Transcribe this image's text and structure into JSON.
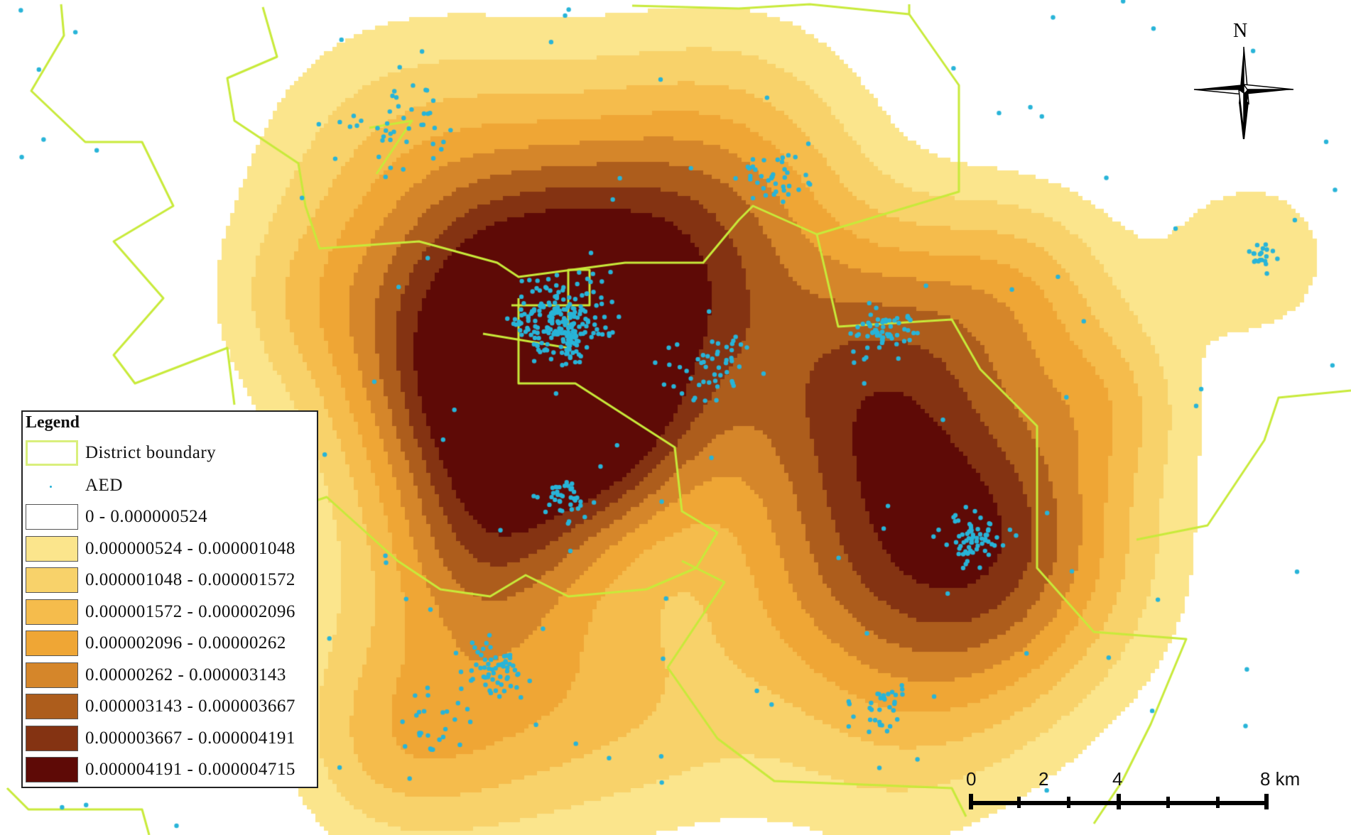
{
  "legend": {
    "title": "Legend",
    "boundary_label": "District boundary",
    "aed_label": "AED",
    "classes": [
      {
        "label": "0 - 0.000000524",
        "color": "#ffffff"
      },
      {
        "label": "0.000000524 - 0.000001048",
        "color": "#fbe58c"
      },
      {
        "label": "0.000001048 - 0.000001572",
        "color": "#f8d26a"
      },
      {
        "label": "0.000001572 - 0.000002096",
        "color": "#f5bc4c"
      },
      {
        "label": "0.000002096 - 0.00000262",
        "color": "#efa635"
      },
      {
        "label": "0.00000262 - 0.000003143",
        "color": "#d5862a"
      },
      {
        "label": "0.000003143 - 0.000003667",
        "color": "#ad5d1c"
      },
      {
        "label": "0.000003667 - 0.000004191",
        "color": "#843312"
      },
      {
        "label": "0.000004191 - 0.000004715",
        "color": "#5e0a06"
      }
    ]
  },
  "colors": {
    "boundary": "#c8ea3a",
    "aed": "#28b4d8"
  },
  "north_label": "N",
  "scale": {
    "labels": [
      "0",
      "2",
      "4",
      "8 km"
    ]
  },
  "icons": [
    "north-arrow-icon",
    "scale-bar-icon"
  ]
}
